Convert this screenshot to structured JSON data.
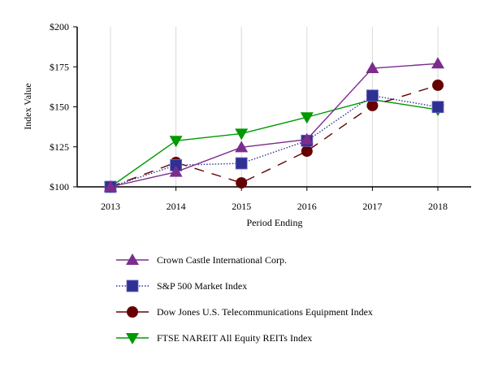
{
  "chart_data": {
    "type": "line",
    "title": "",
    "xlabel": "Period Ending",
    "ylabel": "Index Value",
    "categories": [
      "2013",
      "2014",
      "2015",
      "2016",
      "2017",
      "2018"
    ],
    "ylim": [
      100,
      200
    ],
    "yticks": [
      100,
      125,
      150,
      175,
      200
    ],
    "ytick_labels": [
      "$100",
      "$125",
      "$150",
      "$175",
      "$200"
    ],
    "grid": "vertical",
    "legend_position": "bottom-left",
    "series": [
      {
        "name": "Crown Castle International Corp.",
        "color": "#7B2D8E",
        "marker": "triangle-up",
        "line": "solid",
        "values": [
          100,
          109.3,
          124.7,
          129.6,
          174.1,
          177.0
        ]
      },
      {
        "name": "S&P 500 Market Index",
        "color": "#2E3192",
        "marker": "square",
        "line": "dotted",
        "values": [
          100,
          113.5,
          114.7,
          128.8,
          157.0,
          149.9
        ]
      },
      {
        "name": "Dow Jones U.S. Telecommunications Equipment Index",
        "color": "#660000",
        "marker": "circle",
        "line": "dashed",
        "values": [
          100,
          115.2,
          102.5,
          122.3,
          150.8,
          163.5
        ]
      },
      {
        "name": "FTSE NAREIT All Equity REITs Index",
        "color": "#009900",
        "marker": "triangle-down",
        "line": "solid",
        "values": [
          100,
          128.8,
          133.3,
          143.5,
          154.5,
          148.2
        ]
      }
    ]
  }
}
